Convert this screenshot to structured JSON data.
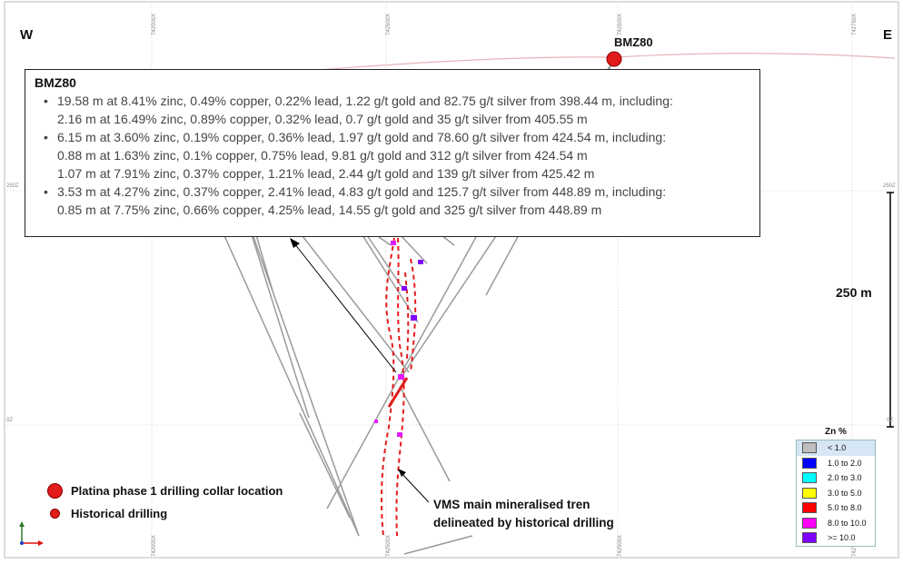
{
  "directions": {
    "west": "W",
    "east": "E"
  },
  "grid_labels": {
    "top": [
      "742000X",
      "742500X",
      "742500X",
      "742750X"
    ],
    "bottom": [
      "742000X",
      "742500X",
      "742500X",
      "742750X"
    ],
    "left": [
      "250Z",
      "0Z"
    ],
    "right": [
      "250Z",
      "0Z"
    ]
  },
  "scale_bar": {
    "label": "250 m"
  },
  "collar": {
    "label": "BMZ80"
  },
  "infobox": {
    "title": "BMZ80",
    "intervals": [
      {
        "main": "19.58 m at 8.41% zinc, 0.49% copper,  0.22% lead, 1.22 g/t gold and 82.75 g/t silver from 398.44 m, including:",
        "subs": [
          "2.16 m at 16.49% zinc, 0.89% copper, 0.32% lead, 0.7 g/t gold and 35 g/t silver from 405.55 m"
        ]
      },
      {
        "main": "6.15 m at 3.60% zinc, 0.19% copper,  0.36% lead, 1.97 g/t gold and 78.60 g/t silver  from 424.54 m, including:",
        "subs": [
          "0.88 m at 1.63% zinc, 0.1% copper,  0.75% lead,  9.81 g/t gold and 312 g/t silver from 424.54 m",
          "1.07 m at 7.91% zinc, 0.37% copper, 1.21% lead, 2.44 g/t gold and 139 g/t silver from 425.42 m"
        ]
      },
      {
        "main": "3.53 m at 4.27% zinc, 0.37% copper,  2.41% lead, 4.83 g/t gold and 125.7 g/t silver  from 448.89 m, including:",
        "subs": [
          "0.85 m at 7.75% zinc, 0.66% copper,  4.25% lead,  14.55 g/t gold and 325 g/t silver from 448.89 m"
        ]
      }
    ]
  },
  "legend": {
    "collar_label": "Platina phase 1 drilling collar location",
    "historical_label": "Historical drilling"
  },
  "vms_note": {
    "line1": "VMS main mineralised tren",
    "line2": "delineated by historical drilling"
  },
  "zn_legend": {
    "title": "Zn %",
    "rows": [
      {
        "label": "< 1.0",
        "color": "#bfbfbf"
      },
      {
        "label": "1.0 to 2.0",
        "color": "#0000ff"
      },
      {
        "label": "2.0 to 3.0",
        "color": "#00ffff"
      },
      {
        "label": "3.0 to 5.0",
        "color": "#ffff00"
      },
      {
        "label": "5.0 to 8.0",
        "color": "#ff0000"
      },
      {
        "label": "8.0 to 10.0",
        "color": "#ff00ff"
      },
      {
        "label": ">= 10.0",
        "color": "#7f00ff"
      }
    ]
  },
  "colors": {
    "collar": "#e21b1b",
    "trend": "#e21b1b",
    "drillhole": "#9a9a9a",
    "topography": "#e6b4b8",
    "grid": "#cccccc"
  }
}
